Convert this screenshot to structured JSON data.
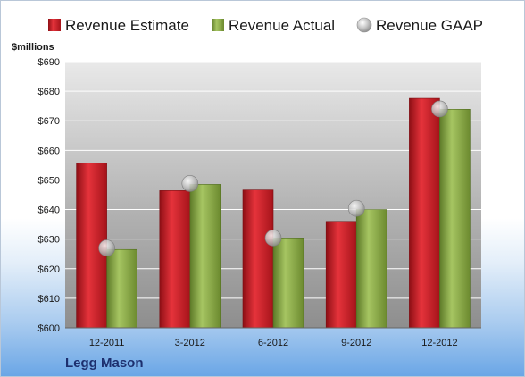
{
  "company": "Legg Mason",
  "chart_data": {
    "type": "bar",
    "units_label": "$millions",
    "categories": [
      "12-2011",
      "3-2012",
      "6-2012",
      "9-2012",
      "12-2012"
    ],
    "series": [
      {
        "name": "Revenue Estimate",
        "kind": "bar",
        "color": "#d4202a",
        "values": [
          655.7,
          646.4,
          646.6,
          636.0,
          677.6
        ]
      },
      {
        "name": "Revenue Actual",
        "kind": "bar",
        "color": "#8fb04a",
        "values": [
          626.5,
          648.5,
          630.4,
          640.0,
          673.9
        ]
      },
      {
        "name": "Revenue GAAP",
        "kind": "marker",
        "color": "#b8b8b8",
        "values": [
          627.0,
          648.8,
          630.4,
          640.4,
          674.0
        ]
      }
    ],
    "ylim": [
      600,
      690
    ],
    "yticks": [
      600,
      610,
      620,
      630,
      640,
      650,
      660,
      670,
      680,
      690
    ],
    "ytick_labels": [
      "$600",
      "$610",
      "$620",
      "$630",
      "$640",
      "$650",
      "$660",
      "$670",
      "$680",
      "$690"
    ],
    "grid": true,
    "legend_position": "top"
  }
}
